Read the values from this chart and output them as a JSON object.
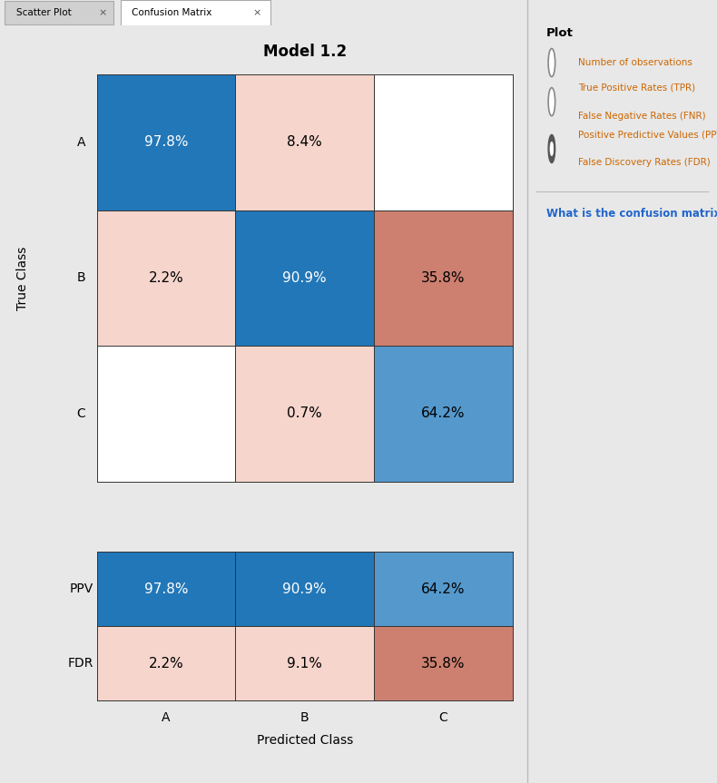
{
  "title": "Model 1.2",
  "classes": [
    "A",
    "B",
    "C"
  ],
  "confusion_matrix": [
    [
      "97.8%",
      "8.4%",
      ""
    ],
    [
      "2.2%",
      "90.9%",
      "35.8%"
    ],
    [
      "",
      "0.7%",
      "64.2%"
    ]
  ],
  "ppv_values": [
    "97.8%",
    "90.9%",
    "64.2%"
  ],
  "fdr_values": [
    "2.2%",
    "9.1%",
    "35.8%"
  ],
  "cell_colors_main": [
    [
      "#2277b8",
      "#f5d5cc",
      "#ffffff"
    ],
    [
      "#f5d5cc",
      "#2277b8",
      "#cd8070"
    ],
    [
      "#ffffff",
      "#f5d5cc",
      "#5599cc"
    ]
  ],
  "cell_colors_ppv": [
    "#2277b8",
    "#2277b8",
    "#5599cc"
  ],
  "cell_colors_fdr": [
    "#f5d5cc",
    "#f5d5cc",
    "#cd8070"
  ],
  "text_colors_main": [
    [
      "white",
      "black",
      "black"
    ],
    [
      "black",
      "white",
      "black"
    ],
    [
      "black",
      "black",
      "black"
    ]
  ],
  "text_colors_ppv": [
    "white",
    "white",
    "black"
  ],
  "text_colors_fdr": [
    "black",
    "black",
    "black"
  ],
  "xlabel": "Predicted Class",
  "ylabel": "True Class",
  "row_labels_ppv_fdr": [
    "PPV",
    "FDR"
  ],
  "background_color": "#e8e8e8",
  "right_panel_bg": "#e2e2e2",
  "title_fontsize": 12,
  "label_fontsize": 10,
  "cell_fontsize": 11,
  "plot_label": "Plot",
  "radio_options_line1": [
    "Number of observations",
    "True Positive Rates (TPR)",
    "Positive Predictive Values (PPV)"
  ],
  "radio_options_line2": [
    "",
    "False Negative Rates (FNR)",
    "False Discovery Rates (FDR)"
  ],
  "radio_selected": 2,
  "link_text": "What is the confusion matrix?"
}
